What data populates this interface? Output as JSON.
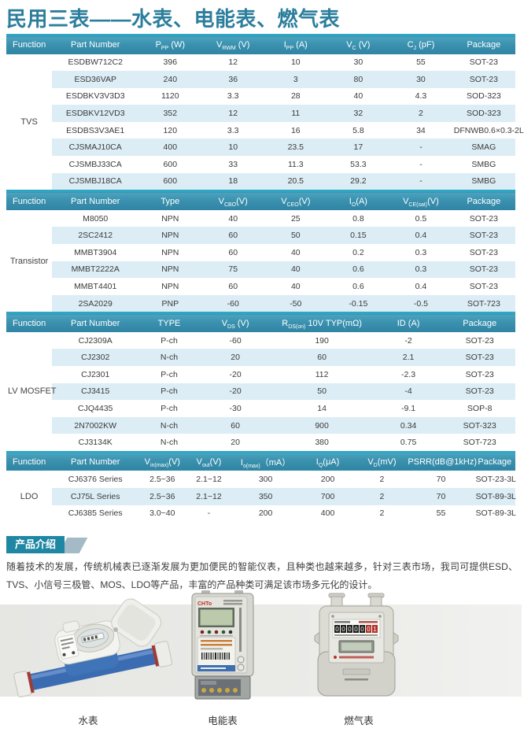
{
  "page": {
    "title": "民用三表——水表、电能表、燃气表"
  },
  "colors": {
    "title_teal": "#2b7e9c",
    "header_gradient_top": "#4ba4c0",
    "header_gradient_bottom": "#2e84a2",
    "header_top_border": "#2fa6c2",
    "stripe_blue": "#dcedf5",
    "badge_teal": "#1f87a3",
    "badge_tail_grey": "#a4bbc7",
    "photo_band_grey": "#e6e6e3"
  },
  "tables": [
    {
      "function": "TVS",
      "col_widths": [
        "9%",
        "17%",
        "12.4%",
        "12.3%",
        "12.3%",
        "12.3%",
        "12.3%",
        "12.4%"
      ],
      "headers": [
        "Function",
        "Part  Number",
        "P_{PP} (W)",
        "V_{RWM} (V)",
        "I_{PP} (A)",
        "V_{C} (V)",
        "C_{J} (pF)",
        "Package"
      ],
      "rows": [
        [
          "ESDBW712C2",
          "396",
          "12",
          "10",
          "30",
          "55",
          "SOT-23"
        ],
        [
          "ESD36VAP",
          "240",
          "36",
          "3",
          "80",
          "30",
          "SOT-23"
        ],
        [
          "ESDBKV3V3D3",
          "1120",
          "3.3",
          "28",
          "40",
          "4.3",
          "SOD-323"
        ],
        [
          "ESDBKV12VD3",
          "352",
          "12",
          "11",
          "32",
          "2",
          "SOD-323"
        ],
        [
          "ESDBS3V3AE1",
          "120",
          "3.3",
          "16",
          "5.8",
          "34",
          "DFNWB0.6×0.3-2L"
        ],
        [
          "CJSMAJ10CA",
          "400",
          "10",
          "23.5",
          "17",
          "-",
          "SMAG"
        ],
        [
          "CJSMBJ33CA",
          "600",
          "33",
          "11.3",
          "53.3",
          "-",
          "SMBG"
        ],
        [
          "CJSMBJ18CA",
          "600",
          "18",
          "20.5",
          "29.2",
          "-",
          "SMBG"
        ]
      ]
    },
    {
      "function": "Transistor",
      "col_widths": [
        "9%",
        "17%",
        "12.4%",
        "12.3%",
        "12.3%",
        "12.3%",
        "12.3%",
        "12.4%"
      ],
      "headers": [
        "Function",
        "Part  Number",
        "Type",
        "V_{CBO}(V)",
        "V_{CEO}(V)",
        "I_{O}(A)",
        "V_{CE(sat)}(V)",
        "Package"
      ],
      "rows": [
        [
          "M8050",
          "NPN",
          "40",
          "25",
          "0.8",
          "0.5",
          "SOT-23"
        ],
        [
          "2SC2412",
          "NPN",
          "60",
          "50",
          "0.15",
          "0.4",
          "SOT-23"
        ],
        [
          "MMBT3904",
          "NPN",
          "60",
          "40",
          "0.2",
          "0.3",
          "SOT-23"
        ],
        [
          "MMBT2222A",
          "NPN",
          "75",
          "40",
          "0.6",
          "0.3",
          "SOT-23"
        ],
        [
          "MMBT4401",
          "NPN",
          "60",
          "40",
          "0.6",
          "0.4",
          "SOT-23"
        ],
        [
          "2SA2029",
          "PNP",
          "-60",
          "-50",
          "-0.15",
          "-0.5",
          "SOT-723"
        ]
      ]
    },
    {
      "function": "LV MOSFET",
      "col_widths": [
        "9%",
        "17%",
        "12%",
        "14%",
        "20%",
        "14%",
        "14%"
      ],
      "headers": [
        "Function",
        "Part  Number",
        "TYPE",
        "V_{DS} (V)",
        "R_{DS(on)} 10V TYP(mΩ)",
        "ID (A)",
        "Package"
      ],
      "rows": [
        [
          "CJ2309A",
          "P-ch",
          "-60",
          "190",
          "-2",
          "SOT-23"
        ],
        [
          "CJ2302",
          "N-ch",
          "20",
          "60",
          "2.1",
          "SOT-23"
        ],
        [
          "CJ2301",
          "P-ch",
          "-20",
          "112",
          "-2.3",
          "SOT-23"
        ],
        [
          "CJ3415",
          "P-ch",
          "-20",
          "50",
          "-4",
          "SOT-23"
        ],
        [
          "CJQ4435",
          "P-ch",
          "-30",
          "14",
          "-9.1",
          "SOP-8"
        ],
        [
          "2N7002KW",
          "N-ch",
          "60",
          "900",
          "0.34",
          "SOT-323"
        ],
        [
          "CJ3134K",
          "N-ch",
          "20",
          "380",
          "0.75",
          "SOT-723"
        ]
      ]
    },
    {
      "function": "LDO",
      "col_widths": [
        "9%",
        "17%",
        "9.3%",
        "9%",
        "13.3%",
        "11.1%",
        "10.2%",
        "13%",
        "8.1%"
      ],
      "headers": [
        "Function",
        "Part Number",
        "V_{in(max)}(V)",
        "V_{out}(V)",
        "I_{o(max)}（mA）",
        "I_{Q}(μA)",
        "V_{D}(mV)",
        "PSRR(dB@1kHz)",
        "Package"
      ],
      "rows": [
        [
          "CJ6376 Series",
          "2.5~36",
          "2.1~12",
          "300",
          "200",
          "2",
          "70",
          "SOT-23-3L"
        ],
        [
          "CJ75L Series",
          "2.5~36",
          "2.1~12",
          "350",
          "700",
          "2",
          "70",
          "SOT-89-3L"
        ],
        [
          "CJ6385 Series",
          "3.0~40",
          "-",
          "200",
          "400",
          "2",
          "55",
          "SOT-89-3L"
        ]
      ]
    }
  ],
  "intro": {
    "badge": "产品介绍",
    "text": "随着技术的发展，传统机械表已逐渐发展为更加便民的智能仪表，且种类也越来越多，针对三表市场，我司可提供ESD、TVS、小信号三极管、MOS、LDO等产品，丰富的产品种类可满足该市场多元化的设计。"
  },
  "products": [
    {
      "name": "water-meter",
      "label": "水表"
    },
    {
      "name": "energy-meter",
      "label": "电能表"
    },
    {
      "name": "gas-meter",
      "label": "燃气表"
    }
  ]
}
